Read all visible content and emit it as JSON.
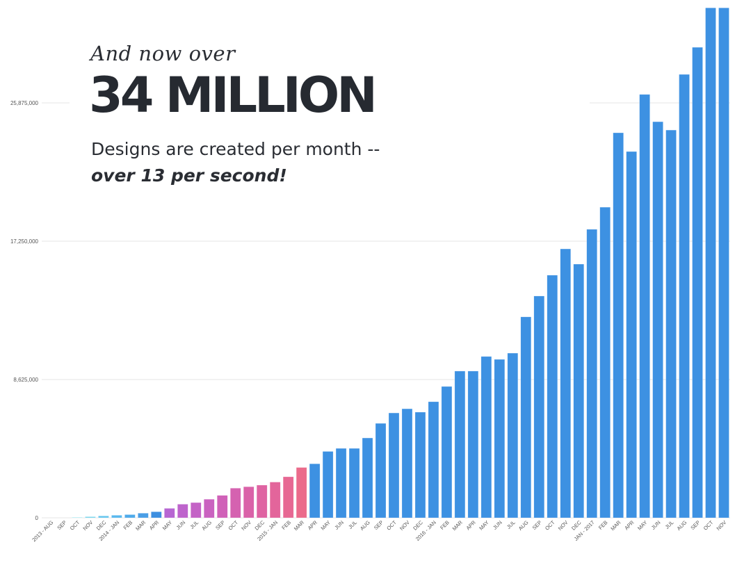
{
  "headline": {
    "kicker": "And now over",
    "big": "34 MILLION",
    "line1": "Designs are created per month --",
    "line2": "over 13 per second!"
  },
  "chart_data": {
    "type": "bar",
    "title": "",
    "xlabel": "",
    "ylabel": "",
    "ylim": [
      0,
      31800000
    ],
    "yticks": [
      0,
      8625000,
      17250000,
      25875000
    ],
    "ytick_labels": [
      "0",
      "8,625,000",
      "17,250,000",
      "25,875,000"
    ],
    "grid": true,
    "categories": [
      "2013 - AUG",
      "SEP",
      "OCT",
      "NOV",
      "DEC",
      "2014 - JAN",
      "FEB",
      "MAR",
      "APR",
      "MAY",
      "JUN",
      "JUL",
      "AUG",
      "SEP",
      "OCT",
      "NOV",
      "DEC",
      "2015 - JAN",
      "FEB",
      "MAR",
      "APR",
      "MAY",
      "JUN",
      "JUL",
      "AUG",
      "SEP",
      "OCT",
      "NOV",
      "DEC",
      "2016 - JAN",
      "FEB",
      "MAR",
      "APR",
      "MAY",
      "JUN",
      "JUL",
      "AUG",
      "SEP",
      "OCT",
      "NOV",
      "DEC",
      "JAN - 2017",
      "FEB",
      "MAR",
      "APR",
      "MAY",
      "JUN",
      "JUL",
      "AUG",
      "SEP",
      "OCT",
      "NOV"
    ],
    "values": [
      0,
      0,
      30000,
      70000,
      120000,
      160000,
      200000,
      290000,
      380000,
      590000,
      850000,
      950000,
      1160000,
      1400000,
      1850000,
      1940000,
      2040000,
      2230000,
      2560000,
      3140000,
      3370000,
      4140000,
      4330000,
      4330000,
      4980000,
      5890000,
      6540000,
      6800000,
      6590000,
      7240000,
      8190000,
      9150000,
      9150000,
      10060000,
      9880000,
      10270000,
      12530000,
      13830000,
      15130000,
      16770000,
      15820000,
      17990000,
      19370000,
      24010000,
      22840000,
      26400000,
      24700000,
      24180000,
      27650000,
      29340000,
      31800000,
      31800000
    ],
    "colors": [
      "#7fe0ea",
      "#7fe0ea",
      "#7fe0ea",
      "#72d3ec",
      "#66c6ee",
      "#5ab8ee",
      "#4eaaea",
      "#4a9ee6",
      "#3d8fe0",
      "#b766d2",
      "#be64cc",
      "#c463c6",
      "#ca62c0",
      "#d061b8",
      "#d562b0",
      "#da62a8",
      "#df63a2",
      "#e3659b",
      "#e76893",
      "#eb6b8b",
      "#3d91e2",
      "#3d91e2",
      "#3d91e2",
      "#3d91e2",
      "#3d91e2",
      "#3d91e2",
      "#3d91e2",
      "#3d91e2",
      "#3d91e2",
      "#3d91e2",
      "#3d91e2",
      "#3d91e2",
      "#3d91e2",
      "#3d91e2",
      "#3d91e2",
      "#3d91e2",
      "#3d91e2",
      "#3d91e2",
      "#3d91e2",
      "#3d91e2",
      "#3d91e2",
      "#3d91e2",
      "#3d91e2",
      "#3d91e2",
      "#3d91e2",
      "#3d91e2",
      "#3d91e2",
      "#3d91e2",
      "#3d91e2",
      "#3d91e2",
      "#3d91e2",
      "#3d91e2"
    ]
  }
}
